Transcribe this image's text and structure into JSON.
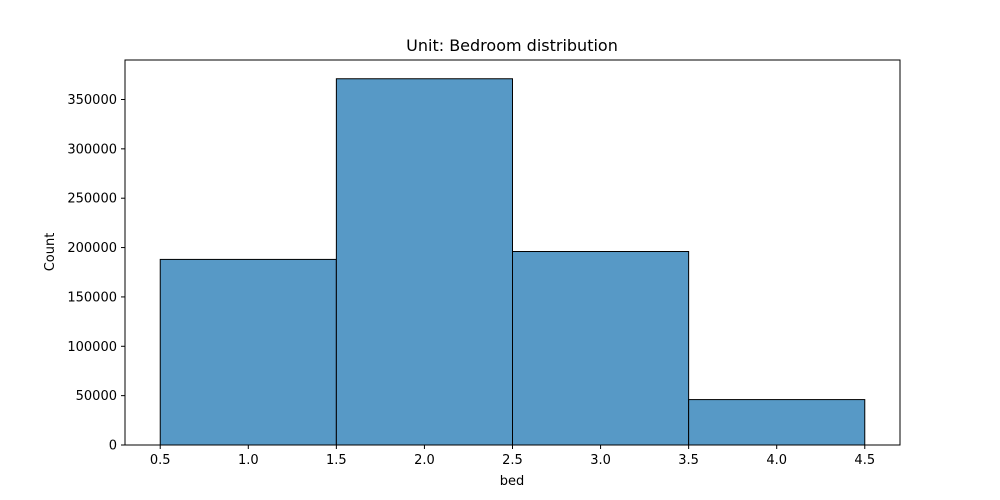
{
  "chart_data": {
    "type": "bar",
    "title": "Unit: Bedroom distribution",
    "xlabel": "bed",
    "ylabel": "Count",
    "bins": [
      {
        "x0": 0.5,
        "x1": 1.5,
        "value": 188000
      },
      {
        "x0": 1.5,
        "x1": 2.5,
        "value": 371000
      },
      {
        "x0": 2.5,
        "x1": 3.5,
        "value": 196000
      },
      {
        "x0": 3.5,
        "x1": 4.5,
        "value": 46000
      }
    ],
    "xlim": [
      0.3,
      4.7
    ],
    "ylim": [
      0,
      390000
    ],
    "xticks": [
      0.5,
      1.0,
      1.5,
      2.0,
      2.5,
      3.0,
      3.5,
      4.0,
      4.5
    ],
    "xtick_labels": [
      "0.5",
      "1.0",
      "1.5",
      "2.0",
      "2.5",
      "3.0",
      "3.5",
      "4.0",
      "4.5"
    ],
    "yticks": [
      0,
      50000,
      100000,
      150000,
      200000,
      250000,
      300000,
      350000
    ],
    "ytick_labels": [
      "0",
      "50000",
      "100000",
      "150000",
      "200000",
      "250000",
      "300000",
      "350000"
    ],
    "grid": false,
    "colors": {
      "bar_fill": "#5799c6",
      "bar_edge": "#000000"
    }
  }
}
